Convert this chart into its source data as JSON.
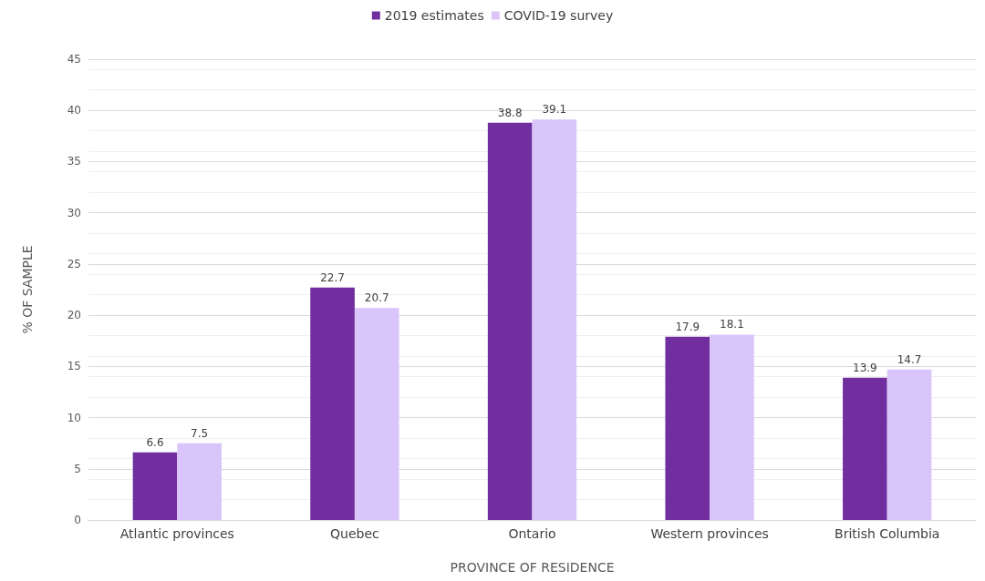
{
  "chart_data": {
    "type": "bar",
    "xlabel": "PROVINCE OF RESIDENCE",
    "ylabel": "% OF SAMPLE",
    "categories": [
      "Atlantic provinces",
      "Quebec",
      "Ontario",
      "Western provinces",
      "British Columbia"
    ],
    "series": [
      {
        "name": "2019 estimates",
        "color": "#702e9e",
        "values": [
          6.6,
          22.7,
          38.8,
          17.9,
          13.9
        ]
      },
      {
        "name": "COVID-19 survey",
        "color": "#d9c5fa",
        "values": [
          7.5,
          20.7,
          39.1,
          18.1,
          14.7
        ]
      }
    ],
    "ylim": [
      0,
      45
    ],
    "yticks": [
      0,
      5,
      10,
      15,
      20,
      25,
      30,
      35,
      40,
      45
    ],
    "grid": "y",
    "legend": "top",
    "data_labels": true
  }
}
